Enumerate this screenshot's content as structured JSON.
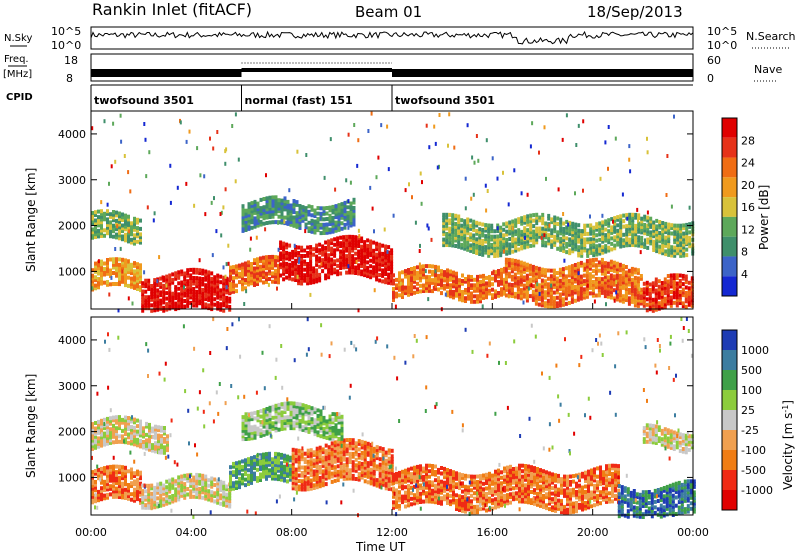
{
  "header": {
    "title": "Rankin Inlet (fitACF)",
    "beam": "Beam 01",
    "date": "18/Sep/2013"
  },
  "params": {
    "nsky_label": "N.Sky",
    "nsearch_label": "N.Search",
    "nsky_ticks": [
      "10^5",
      "10^0"
    ],
    "nsearch_ticks": [
      "10^5",
      "10^0"
    ],
    "freq_label": "Freq.",
    "freq_unit": "[MHz]",
    "freq_ticks": [
      "18",
      "8"
    ],
    "nave_label": "Nave",
    "nave_ticks": [
      "60",
      "0"
    ],
    "cpid_label": "CPID",
    "cpid_segments": [
      {
        "label": "twofsound 3501",
        "start_h": 0,
        "end_h": 6
      },
      {
        "label": "normal (fast) 151",
        "start_h": 6,
        "end_h": 12
      },
      {
        "label": "twofsound 3501",
        "start_h": 12,
        "end_h": 24
      }
    ]
  },
  "xaxis": {
    "label": "Time UT",
    "ticks": [
      "00:00",
      "04:00",
      "08:00",
      "12:00",
      "16:00",
      "20:00",
      "00:00"
    ]
  },
  "colors": {
    "power": [
      "#1428d2",
      "#3c64c8",
      "#3f8f6b",
      "#5da85a",
      "#d8c23a",
      "#f09a1e",
      "#f06d14",
      "#e63219",
      "#e00000"
    ],
    "velocity": [
      "#e00000",
      "#f02a14",
      "#f07d14",
      "#f0a050",
      "#c8c8c8",
      "#8ccc3c",
      "#3fa048",
      "#3c7da0",
      "#1e3cb4"
    ]
  },
  "chart_data": [
    {
      "type": "heatmap",
      "name": "power",
      "ylabel": "Slant Range [km]",
      "xlabel": "Time UT",
      "xlim": [
        0,
        24
      ],
      "ylim": [
        180,
        4500
      ],
      "yticks": [
        "1000",
        "2000",
        "3000",
        "4000"
      ],
      "colorbar_label": "Power [dB]",
      "colorbar_ticks": [
        "28",
        "24",
        "20",
        "16",
        "12",
        "8",
        "4"
      ],
      "bands": [
        {
          "t0": 0.0,
          "t1": 2.0,
          "r0": 650,
          "r1": 1200,
          "level": 5
        },
        {
          "t0": 2.0,
          "t1": 5.5,
          "r0": 180,
          "r1": 1000,
          "level": 8
        },
        {
          "t0": 5.5,
          "t1": 7.5,
          "r0": 700,
          "r1": 1300,
          "level": 6
        },
        {
          "t0": 7.5,
          "t1": 12.0,
          "r0": 900,
          "r1": 1700,
          "level": 8
        },
        {
          "t0": 12.0,
          "t1": 16.5,
          "r0": 500,
          "r1": 1100,
          "level": 6
        },
        {
          "t0": 16.5,
          "t1": 22.0,
          "r0": 400,
          "r1": 1200,
          "level": 6
        },
        {
          "t0": 22.0,
          "t1": 24.0,
          "r0": 180,
          "r1": 900,
          "level": 7
        },
        {
          "t0": 0.0,
          "t1": 2.0,
          "r0": 1700,
          "r1": 2300,
          "level": 3
        },
        {
          "t0": 6.0,
          "t1": 10.5,
          "r0": 2000,
          "r1": 2600,
          "level": 2
        },
        {
          "t0": 14.0,
          "t1": 24.0,
          "r0": 1500,
          "r1": 2200,
          "level": 3
        }
      ]
    },
    {
      "type": "heatmap",
      "name": "velocity",
      "ylabel": "Slant Range [km]",
      "xlabel": "Time UT",
      "xlim": [
        0,
        24
      ],
      "ylim": [
        180,
        4500
      ],
      "yticks": [
        "1000",
        "2000",
        "3000",
        "4000"
      ],
      "colorbar_label": "Velocity [m s^-1]",
      "colorbar_ticks": [
        "1000",
        "500",
        "100",
        "25",
        "-25",
        "-100",
        "-500",
        "-1000"
      ],
      "bands": [
        {
          "t0": 0.0,
          "t1": 2.0,
          "r0": 500,
          "r1": 1200,
          "level": 2
        },
        {
          "t0": 2.0,
          "t1": 5.5,
          "r0": 500,
          "r1": 1000,
          "level": 4
        },
        {
          "t0": 5.5,
          "t1": 8.0,
          "r0": 900,
          "r1": 1500,
          "level": 6
        },
        {
          "t0": 8.0,
          "t1": 12.0,
          "r0": 900,
          "r1": 1800,
          "level": 2
        },
        {
          "t0": 12.0,
          "t1": 21.0,
          "r0": 400,
          "r1": 1200,
          "level": 2
        },
        {
          "t0": 21.0,
          "t1": 24.0,
          "r0": 180,
          "r1": 900,
          "level": 7
        },
        {
          "t0": 0.0,
          "t1": 3.0,
          "r0": 1700,
          "r1": 2300,
          "level": 4
        },
        {
          "t0": 6.0,
          "t1": 10.0,
          "r0": 2000,
          "r1": 2600,
          "level": 5
        },
        {
          "t0": 22.0,
          "t1": 24.0,
          "r0": 1700,
          "r1": 2100,
          "level": 4
        }
      ]
    }
  ]
}
